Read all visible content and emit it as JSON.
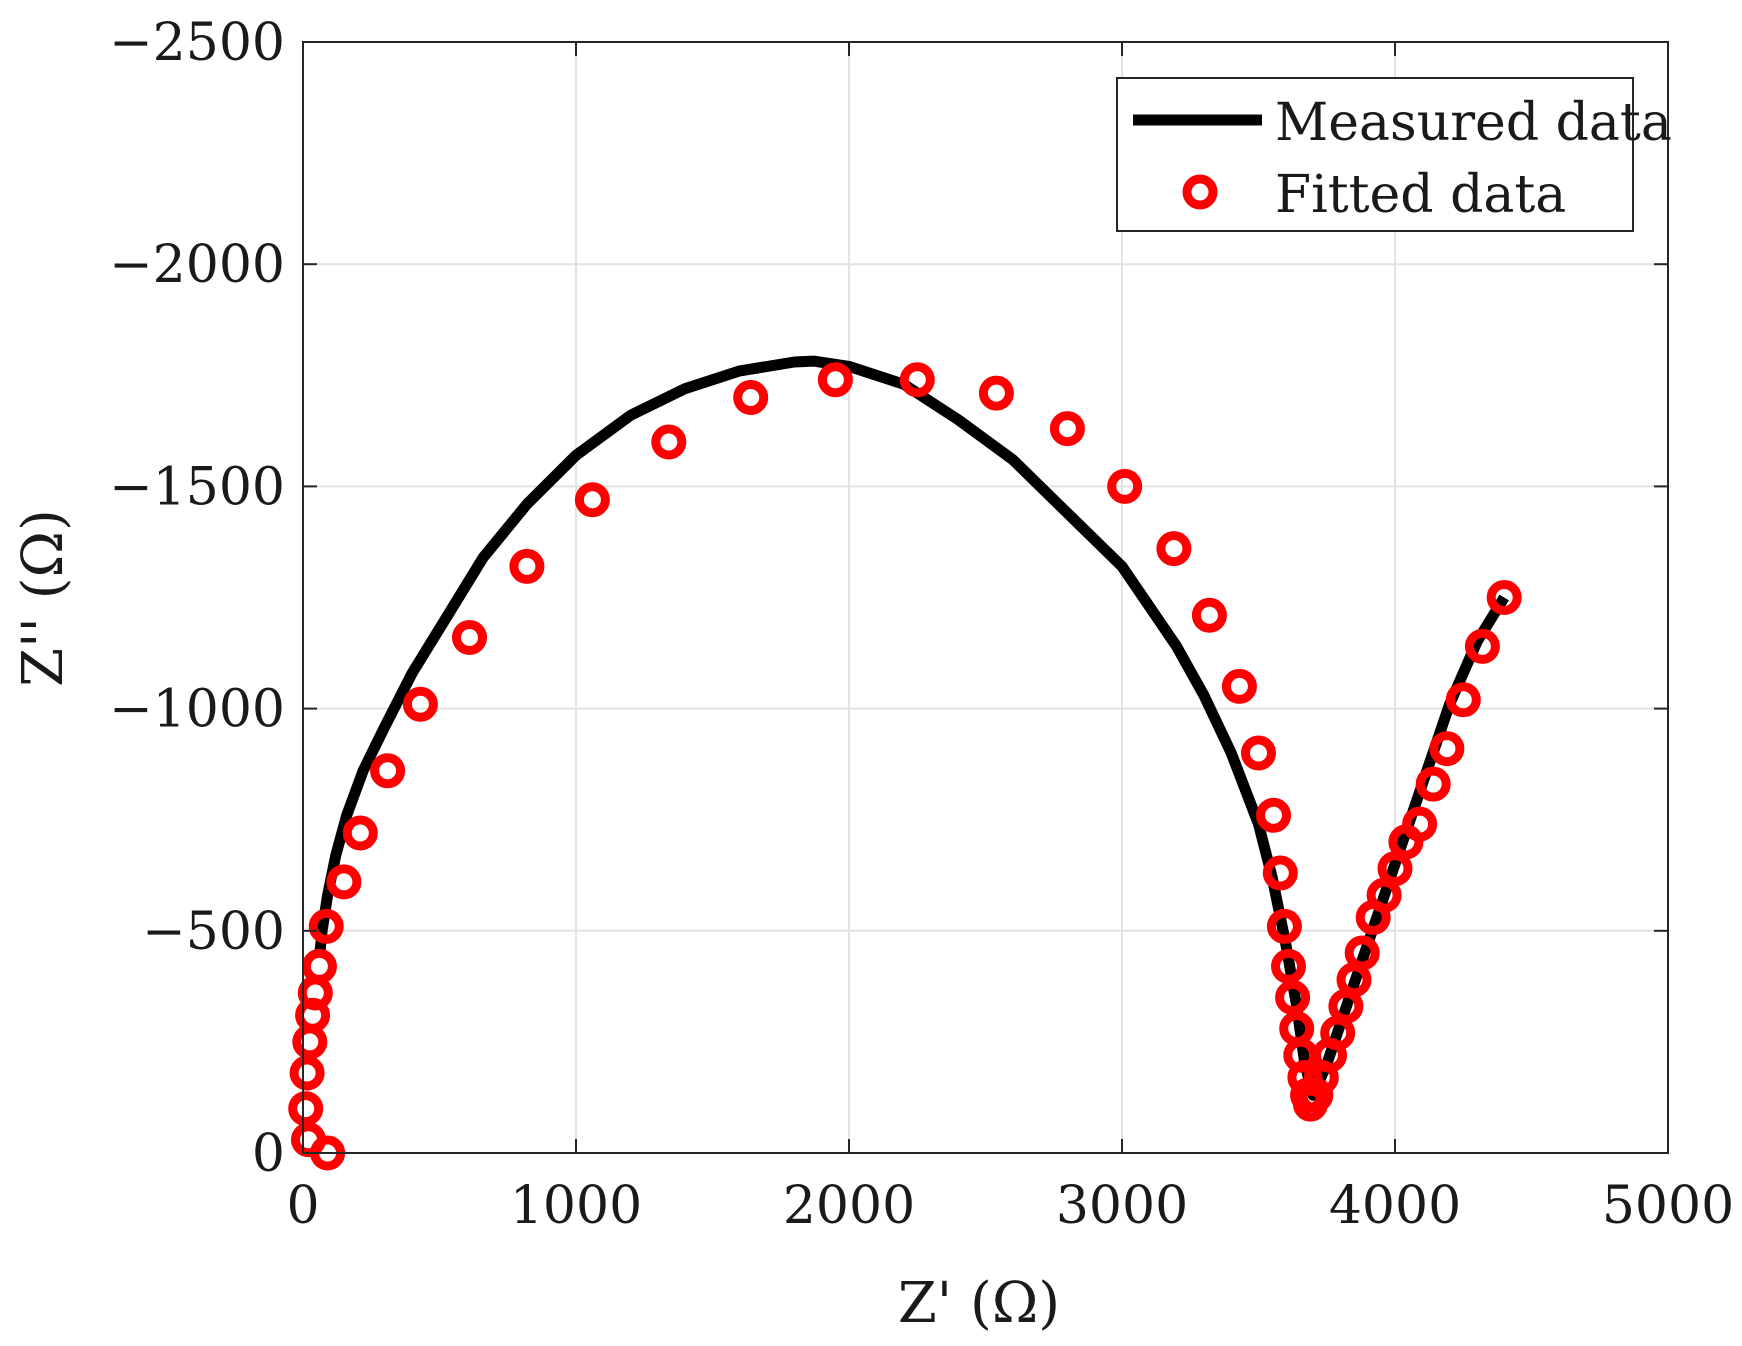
{
  "chart_data": {
    "type": "scatter",
    "title": "",
    "xlabel": "Z' (Ω)",
    "ylabel": "Z'' (Ω)",
    "xlim": [
      0,
      5000
    ],
    "ylim": [
      -2500,
      0
    ],
    "y_axis_reversed": true,
    "grid": true,
    "legend_position": "top-right",
    "x_ticks": [
      0,
      1000,
      2000,
      3000,
      4000,
      5000
    ],
    "x_tick_labels": [
      "0",
      "1000",
      "2000",
      "3000",
      "4000",
      "5000"
    ],
    "y_ticks": [
      -2500,
      -2000,
      -1500,
      -1000,
      -500,
      0
    ],
    "y_tick_labels": [
      "−2500",
      "−2000",
      "−1500",
      "−1000",
      "−500",
      "0"
    ],
    "colors": {
      "measured": "#000000",
      "fitted": "#ff0000",
      "grid": "#e3e3e3",
      "axis": "#262626"
    },
    "series": [
      {
        "name": "Measured data",
        "style": "line",
        "x": [
          60,
          70,
          90,
          120,
          160,
          220,
          300,
          400,
          520,
          660,
          820,
          1000,
          1200,
          1400,
          1600,
          1800,
          1870,
          2000,
          2200,
          2400,
          2600,
          2800,
          3000,
          3200,
          3300,
          3400,
          3500,
          3550,
          3600,
          3640,
          3670,
          3700,
          3750,
          3800,
          3850,
          3900,
          3950,
          4000,
          4050,
          4100,
          4150,
          4200,
          4250,
          4300,
          4350,
          4400
        ],
        "y": [
          -440,
          -500,
          -580,
          -670,
          -760,
          -860,
          -960,
          -1080,
          -1200,
          -1340,
          -1460,
          -1570,
          -1660,
          -1720,
          -1760,
          -1780,
          -1782,
          -1770,
          -1730,
          -1650,
          -1560,
          -1440,
          -1320,
          -1140,
          -1030,
          -900,
          -740,
          -620,
          -470,
          -330,
          -200,
          -130,
          -200,
          -290,
          -380,
          -470,
          -560,
          -650,
          -740,
          -830,
          -920,
          -1010,
          -1080,
          -1150,
          -1200,
          -1250
        ]
      },
      {
        "name": "Fitted data",
        "style": "markers",
        "x": [
          90,
          20,
          10,
          15,
          25,
          35,
          45,
          60,
          85,
          150,
          210,
          310,
          430,
          610,
          820,
          1060,
          1340,
          1640,
          1950,
          2250,
          2540,
          2800,
          3010,
          3190,
          3320,
          3430,
          3500,
          3555,
          3580,
          3595,
          3610,
          3625,
          3640,
          3655,
          3670,
          3680,
          3690,
          3710,
          3730,
          3760,
          3790,
          3820,
          3850,
          3880,
          3920,
          3960,
          4000,
          4040,
          4090,
          4140,
          4190,
          4250,
          4320,
          4400
        ],
        "y": [
          0,
          -30,
          -100,
          -180,
          -250,
          -310,
          -360,
          -420,
          -510,
          -610,
          -720,
          -860,
          -1010,
          -1160,
          -1320,
          -1470,
          -1600,
          -1700,
          -1740,
          -1740,
          -1710,
          -1630,
          -1500,
          -1360,
          -1210,
          -1050,
          -900,
          -760,
          -630,
          -510,
          -420,
          -350,
          -280,
          -220,
          -170,
          -130,
          -110,
          -130,
          -170,
          -220,
          -270,
          -330,
          -390,
          -450,
          -530,
          -580,
          -640,
          -700,
          -740,
          -830,
          -910,
          -1020,
          -1140,
          -1250
        ]
      }
    ]
  }
}
